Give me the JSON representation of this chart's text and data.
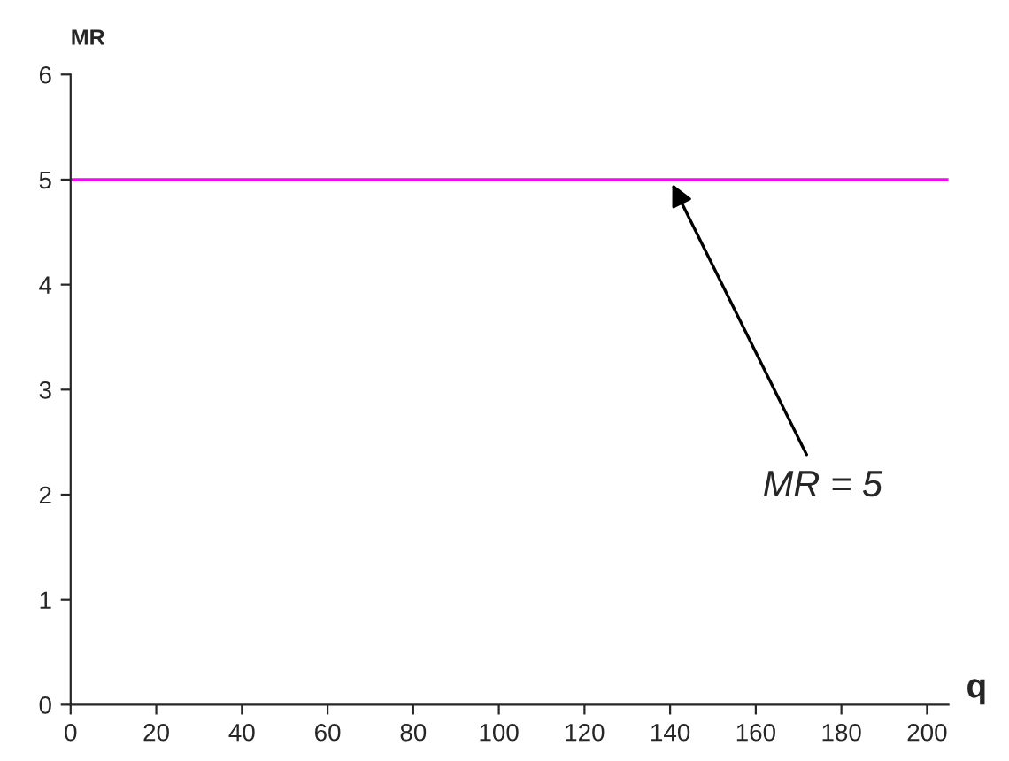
{
  "chart_data": {
    "type": "line",
    "xlabel": "q",
    "ylabel": "MR",
    "x": [
      0,
      205
    ],
    "series": [
      {
        "color": "#ff00ff",
        "values": [
          5,
          5
        ]
      }
    ],
    "xlim": [
      0,
      205
    ],
    "xticks": [
      0,
      20,
      40,
      60,
      80,
      100,
      120,
      140,
      160,
      180,
      200
    ],
    "ylim": [
      0,
      6
    ],
    "yticks": [
      0,
      1,
      2,
      3,
      4,
      5,
      6
    ],
    "line_style": "solid",
    "annotations": [
      {
        "text": "MR = 5",
        "x": 140,
        "y": 5
      }
    ]
  }
}
